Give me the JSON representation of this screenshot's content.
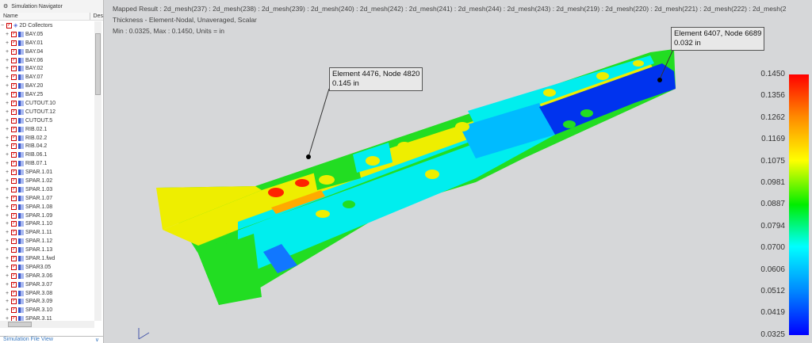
{
  "navigator": {
    "title": "Simulation Navigator",
    "col_name": "Name",
    "col_desc": "Des",
    "root": "2D Collectors",
    "items": [
      "BAY.05",
      "BAY.01",
      "BAY.04",
      "BAY.06",
      "BAY.02",
      "BAY.07",
      "BAY.20",
      "BAY.25",
      "CUTOUT.10",
      "CUTOUT.12",
      "CUTOUT.5",
      "RIB.02.1",
      "RIB.02.2",
      "RIB.04.2",
      "RIB.06.1",
      "RIB.07.1",
      "SPAR.1.01",
      "SPAR.1.02",
      "SPAR.1.03",
      "SPAR.1.07",
      "SPAR.1.08",
      "SPAR.1.09",
      "SPAR.1.10",
      "SPAR.1.11",
      "SPAR.1.12",
      "SPAR.1.13",
      "SPAR.1.fwd",
      "SPAR3.05",
      "SPAR.3.06",
      "SPAR.3.07",
      "SPAR.3.08",
      "SPAR.3.09",
      "SPAR.3.10",
      "SPAR.3.11"
    ],
    "file_view": "Simulation File View"
  },
  "viewport": {
    "line1": "Mapped Result : 2d_mesh(237) : 2d_mesh(238) : 2d_mesh(239) : 2d_mesh(240) : 2d_mesh(242) : 2d_mesh(241) : 2d_mesh(244) : 2d_mesh(243) : 2d_mesh(219) : 2d_mesh(220) : 2d_mesh(221) : 2d_mesh(222) : 2d_mesh(2",
    "line2": "Thickness - Element-Nodal, Unaveraged, Scalar",
    "line3": "Min : 0.0325, Max : 0.1450, Units = in"
  },
  "callouts": [
    {
      "title": "Element 4476, Node 4820",
      "value": "0.145 in"
    },
    {
      "title": "Element 6407, Node 6689",
      "value": "0.032 in"
    }
  ],
  "legend": {
    "ticks": [
      "0.1450",
      "0.1356",
      "0.1262",
      "0.1169",
      "0.1075",
      "0.0981",
      "0.0887",
      "0.0794",
      "0.0700",
      "0.0606",
      "0.0512",
      "0.0419",
      "0.0325"
    ],
    "min_color": "#0000ff",
    "max_color": "#ff0000"
  }
}
